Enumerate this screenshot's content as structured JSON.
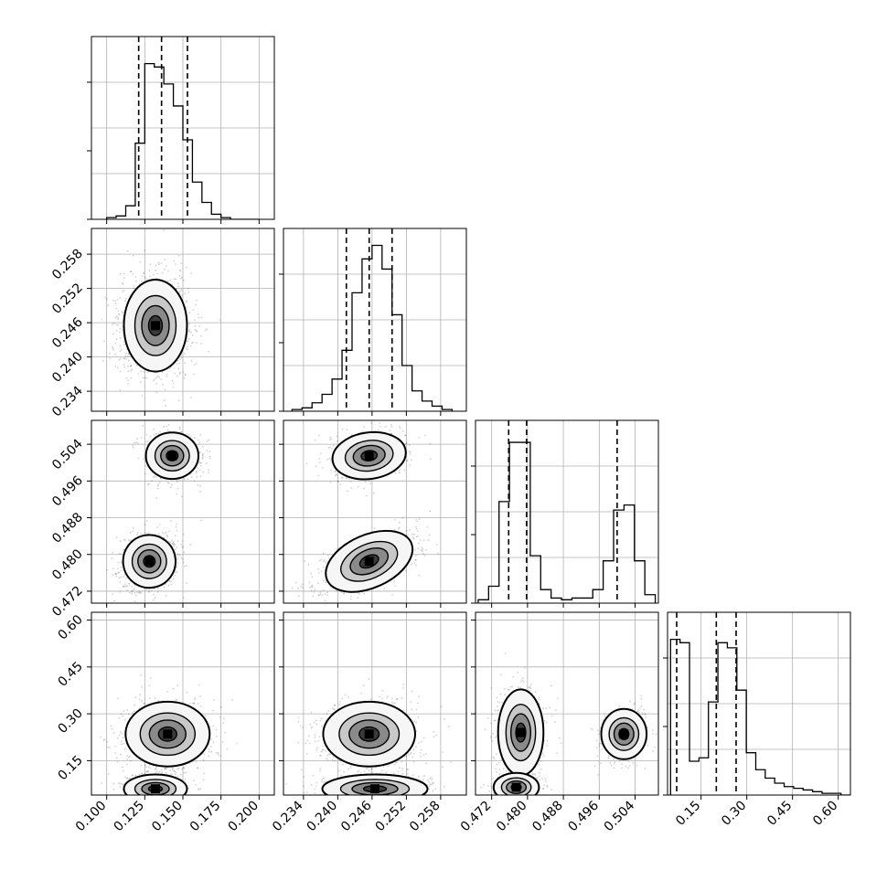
{
  "chart_data": {
    "type": "corner",
    "params": [
      {
        "ticks": [
          "0.100",
          "0.125",
          "0.150",
          "0.175",
          "0.200"
        ],
        "range": [
          0.09,
          0.21
        ],
        "quantiles": [
          0.121,
          0.136,
          0.153
        ]
      },
      {
        "ticks": [
          "0.234",
          "0.240",
          "0.246",
          "0.252",
          "0.258"
        ],
        "range": [
          0.2305,
          0.2625
        ],
        "quantiles": [
          0.2415,
          0.2455,
          0.2495
        ]
      },
      {
        "ticks": [
          "0.472",
          "0.480",
          "0.488",
          "0.496",
          "0.504"
        ],
        "range": [
          0.4684,
          0.5092
        ],
        "quantiles": [
          0.4758,
          0.4798,
          0.5
        ],
        "ylim_top": [
          0.4694,
          0.5092
        ]
      },
      {
        "ticks": [
          "0.15",
          "0.30",
          "0.45",
          "0.60"
        ],
        "range": [
          0.04,
          0.64
        ],
        "quantiles": [
          0.07,
          0.2,
          0.265
        ],
        "ylim_left": [
          0.04,
          0.625
        ]
      }
    ],
    "histograms": [
      {
        "edges_range": [
          0.1,
          0.2
        ],
        "counts": [
          1,
          2,
          8,
          45,
          92,
          90,
          80,
          67,
          47,
          22,
          10,
          3,
          1,
          0,
          0,
          0
        ]
      },
      {
        "edges_range": [
          0.232,
          0.26
        ],
        "counts": [
          1,
          2,
          5,
          10,
          19,
          36,
          70,
          90,
          98,
          84,
          57,
          27,
          12,
          6,
          3,
          1
        ]
      },
      {
        "edges_range": [
          0.469,
          0.5085
        ],
        "counts": [
          2,
          10,
          60,
          95,
          95,
          28,
          8,
          3,
          2,
          3,
          3,
          8,
          25,
          55,
          58,
          25,
          5
        ]
      },
      {
        "edges_range": [
          0.05,
          0.64
        ],
        "counts": [
          92,
          90,
          20,
          22,
          55,
          90,
          87,
          62,
          25,
          15,
          10,
          7,
          5,
          4,
          3,
          2,
          1,
          1,
          0
        ]
      }
    ],
    "hist_ymax": 100,
    "blobs": {
      "1-0": [
        {
          "mx": 0.132,
          "my": 0.2455,
          "sx": 0.009,
          "sy": 0.0035,
          "r": 0.0,
          "w": 1.0
        }
      ],
      "2-0": [
        {
          "mx": 0.143,
          "my": 0.5015,
          "sx": 0.0075,
          "sy": 0.0022,
          "r": 0.0,
          "w": 0.4
        },
        {
          "mx": 0.128,
          "my": 0.4785,
          "sx": 0.0075,
          "sy": 0.0025,
          "r": 0.2,
          "w": 0.6
        }
      ],
      "2-1": [
        {
          "mx": 0.2455,
          "my": 0.5015,
          "sx": 0.0028,
          "sy": 0.0022,
          "r": 0.2,
          "w": 0.4
        },
        {
          "mx": 0.2455,
          "my": 0.4785,
          "sx": 0.0035,
          "sy": 0.0025,
          "r": 0.6,
          "w": 0.6
        }
      ],
      "3-0": [
        {
          "mx": 0.14,
          "my": 0.235,
          "sx": 0.012,
          "sy": 0.045,
          "r": 0.0,
          "w": 0.65
        },
        {
          "mx": 0.132,
          "my": 0.06,
          "sx": 0.009,
          "sy": 0.02,
          "r": 0.0,
          "w": 0.35
        }
      ],
      "3-1": [
        {
          "mx": 0.2455,
          "my": 0.235,
          "sx": 0.0035,
          "sy": 0.045,
          "r": 0.0,
          "w": 0.65
        },
        {
          "mx": 0.2465,
          "my": 0.06,
          "sx": 0.004,
          "sy": 0.02,
          "r": 0.0,
          "w": 0.35
        }
      ],
      "3-2": [
        {
          "mx": 0.4785,
          "my": 0.24,
          "sx": 0.0022,
          "sy": 0.06,
          "r": 0.0,
          "w": 0.45
        },
        {
          "mx": 0.4775,
          "my": 0.065,
          "sx": 0.0022,
          "sy": 0.02,
          "r": 0.0,
          "w": 0.3
        },
        {
          "mx": 0.5015,
          "my": 0.235,
          "sx": 0.0022,
          "sy": 0.035,
          "r": 0.0,
          "w": 0.25
        }
      ]
    },
    "grid": true,
    "title": "",
    "xlabel": "",
    "ylabel": ""
  }
}
